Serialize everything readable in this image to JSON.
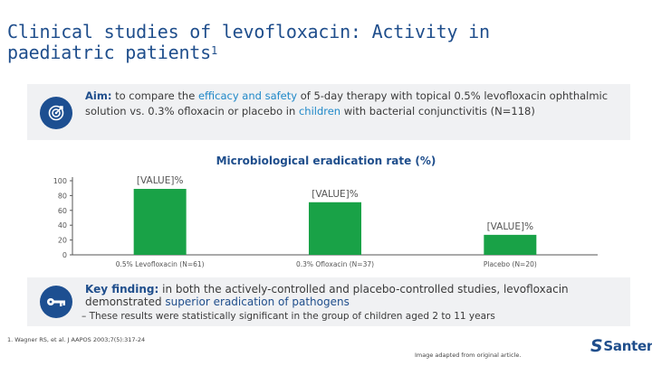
{
  "slide": {
    "title": "Clinical studies of levofloxacin: Activity in paediatric patients",
    "title_sup": "1"
  },
  "aim": {
    "icon": "target-icon",
    "label": "Aim:",
    "t1": " to compare the ",
    "h1": "efficacy and safety",
    "t2": " of 5-day therapy with topical 0.5% levofloxacin ophthalmic solution vs. 0.3% ofloxacin or placebo in ",
    "h2": "children",
    "t3": " with bacterial conjunctivitis (N=118)"
  },
  "chart_data": {
    "type": "bar",
    "title": "Microbiological eradication rate (%)",
    "categories": [
      "0.5% Levofloxacin (N=61)",
      "0.3% Ofloxacin (N=37)",
      "Placebo (N=20)"
    ],
    "values": [
      89,
      71,
      27
    ],
    "value_labels": [
      "[VALUE]%",
      "[VALUE]%",
      "[VALUE]%"
    ],
    "colors": [
      "#19a247",
      "#19a247",
      "#19a247"
    ],
    "yticks": [
      "0",
      "20",
      "40",
      "60",
      "80",
      "100"
    ],
    "ylim": [
      0,
      100
    ],
    "grid": false,
    "xlabel": "",
    "ylabel": ""
  },
  "key": {
    "icon": "key-icon",
    "label": "Key finding:",
    "t1": " in both the actively-controlled and placebo-controlled studies, levofloxacin demonstrated ",
    "h1": "superior eradication of pathogens",
    "sub": "– These results were statistically significant in the group of children aged 2 to 11 years"
  },
  "footer": {
    "reference": "1. Wagner RS, et al. J AAPOS 2003;7(5):317-24",
    "adapted": "Image adapted from original article.",
    "brand": "Santen"
  }
}
